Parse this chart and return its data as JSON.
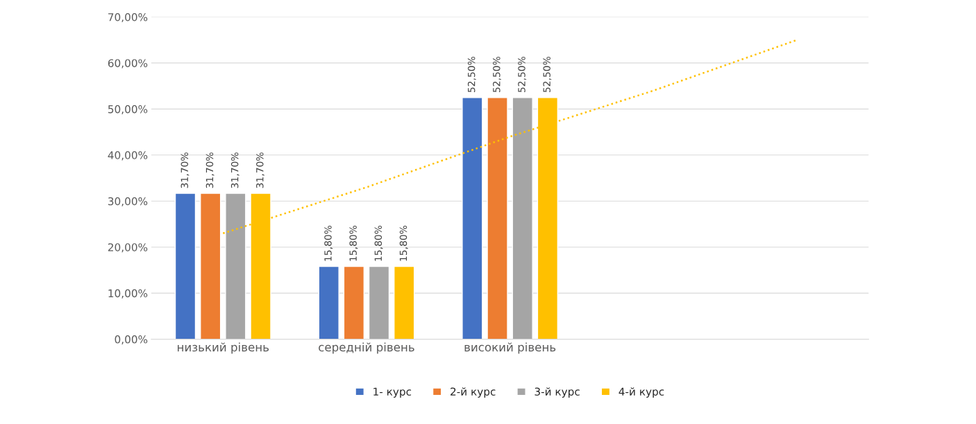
{
  "chart_data": {
    "type": "bar",
    "categories": [
      "низький рівень",
      "середній рівень",
      "високий рівень",
      null,
      null
    ],
    "series": [
      {
        "name": "1- курс",
        "color": "#4472c4",
        "values": [
          31.7,
          15.8,
          52.5,
          null,
          null
        ],
        "value_labels": [
          "31,70%",
          "15,80%",
          "52,50%",
          null,
          null
        ]
      },
      {
        "name": "2-й курс",
        "color": "#ed7d31",
        "values": [
          31.7,
          15.8,
          52.5,
          null,
          null
        ],
        "value_labels": [
          "31,70%",
          "15,80%",
          "52,50%",
          null,
          null
        ]
      },
      {
        "name": "3-й курс",
        "color": "#a5a5a5",
        "values": [
          31.7,
          15.8,
          52.5,
          null,
          null
        ],
        "value_labels": [
          "31,70%",
          "15,80%",
          "52,50%",
          null,
          null
        ]
      },
      {
        "name": "4-й курс",
        "color": "#ffc000",
        "values": [
          31.7,
          15.8,
          52.5,
          null,
          null
        ],
        "value_labels": [
          "31,70%",
          "15,80%",
          "52,50%",
          null,
          null
        ]
      },
      {
        "type": "line",
        "color": "#ffc000",
        "line_style": "dotted",
        "values": [
          23,
          33,
          44,
          54,
          65
        ]
      }
    ],
    "ylim": [
      0,
      70
    ],
    "yticks": [
      {
        "value": 0,
        "label": "0,00%"
      },
      {
        "value": 10,
        "label": "10,00%"
      },
      {
        "value": 20,
        "label": "20,00%"
      },
      {
        "value": 30,
        "label": "30,00%"
      },
      {
        "value": 40,
        "label": "40,00%"
      },
      {
        "value": 50,
        "label": "50,00%"
      },
      {
        "value": 60,
        "label": "60,00%"
      },
      {
        "value": 70,
        "label": "70,00%"
      }
    ],
    "grid": "y",
    "legend": "bottom"
  }
}
